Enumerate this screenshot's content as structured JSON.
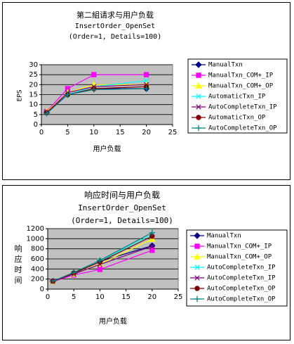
{
  "chart_data": [
    {
      "type": "line",
      "title": "第二組请求与用户负载",
      "subtitle_lines": [
        "InsertOrder_OpenSet",
        "(Order=1, Details=100)"
      ],
      "xlabel": "用户负载",
      "ylabel": "EPS",
      "x": [
        1,
        5,
        10,
        20
      ],
      "xlim": [
        0,
        25
      ],
      "xticks": [
        0,
        5,
        10,
        15,
        20,
        25
      ],
      "ylim": [
        0,
        30
      ],
      "yticks": [
        0,
        5,
        10,
        15,
        20,
        25,
        30
      ],
      "grid": true,
      "legend_position": "right",
      "plot_background": "#c0c0c0",
      "series": [
        {
          "name": "ManualTxn",
          "color": "#000080",
          "marker": "diamond",
          "values": [
            6,
            15,
            18,
            18
          ]
        },
        {
          "name": "ManualTxn_COM+_IP",
          "color": "#ff00ff",
          "marker": "square",
          "values": [
            6.5,
            18,
            25,
            25
          ]
        },
        {
          "name": "ManualTxn_COM+_OP",
          "color": "#ffff00",
          "marker": "triangle",
          "values": [
            6.5,
            16,
            20,
            20
          ]
        },
        {
          "name": "AutomaticTxn_IP",
          "color": "#00ffff",
          "marker": "x",
          "values": [
            6,
            15,
            19,
            22
          ]
        },
        {
          "name": "AutoCompleteTxn_IP",
          "color": "#800080",
          "marker": "x",
          "values": [
            6,
            16,
            19,
            20
          ]
        },
        {
          "name": "AutomaticTxn_OP",
          "color": "#800000",
          "marker": "circle",
          "values": [
            6,
            15,
            18,
            19
          ]
        },
        {
          "name": "AutoCompleteTxn_OP",
          "color": "#008080",
          "marker": "plus",
          "values": [
            5.5,
            15,
            17.5,
            18
          ]
        }
      ]
    },
    {
      "type": "line",
      "title": "响应时间与用户负载",
      "subtitle_lines": [
        "InsertOrder_OpenSet",
        "(Order=1, Details=100)"
      ],
      "xlabel": "用户负载",
      "ylabel": "响应时间",
      "x": [
        1,
        5,
        10,
        20
      ],
      "xlim": [
        0,
        25
      ],
      "xticks": [
        0,
        5,
        10,
        15,
        20,
        25
      ],
      "ylim": [
        0,
        1200
      ],
      "yticks": [
        0,
        200,
        400,
        600,
        800,
        1000,
        1200
      ],
      "grid": true,
      "legend_position": "right",
      "plot_background": "#c0c0c0",
      "series": [
        {
          "name": "ManualTxn",
          "color": "#000080",
          "marker": "diamond",
          "values": [
            160,
            310,
            550,
            860
          ]
        },
        {
          "name": "ManualTxn_COM+_IP",
          "color": "#ff00ff",
          "marker": "square",
          "values": [
            150,
            280,
            390,
            770
          ]
        },
        {
          "name": "ManualTxn_COM+_OP",
          "color": "#ffff00",
          "marker": "triangle",
          "values": [
            150,
            300,
            500,
            990
          ]
        },
        {
          "name": "AutoCompleteTxn_IP",
          "color": "#00ffff",
          "marker": "x",
          "values": [
            160,
            320,
            560,
            1080
          ]
        },
        {
          "name": "AutoCompleteTxn_IP",
          "color": "#800080",
          "marker": "x",
          "values": [
            150,
            300,
            490,
            850
          ]
        },
        {
          "name": "AutoCompleteTxn_OP",
          "color": "#800000",
          "marker": "circle",
          "values": [
            160,
            320,
            540,
            1050
          ]
        },
        {
          "name": "AutoCompleteTxn_OP",
          "color": "#008080",
          "marker": "plus",
          "values": [
            160,
            330,
            570,
            1120
          ]
        }
      ]
    }
  ]
}
